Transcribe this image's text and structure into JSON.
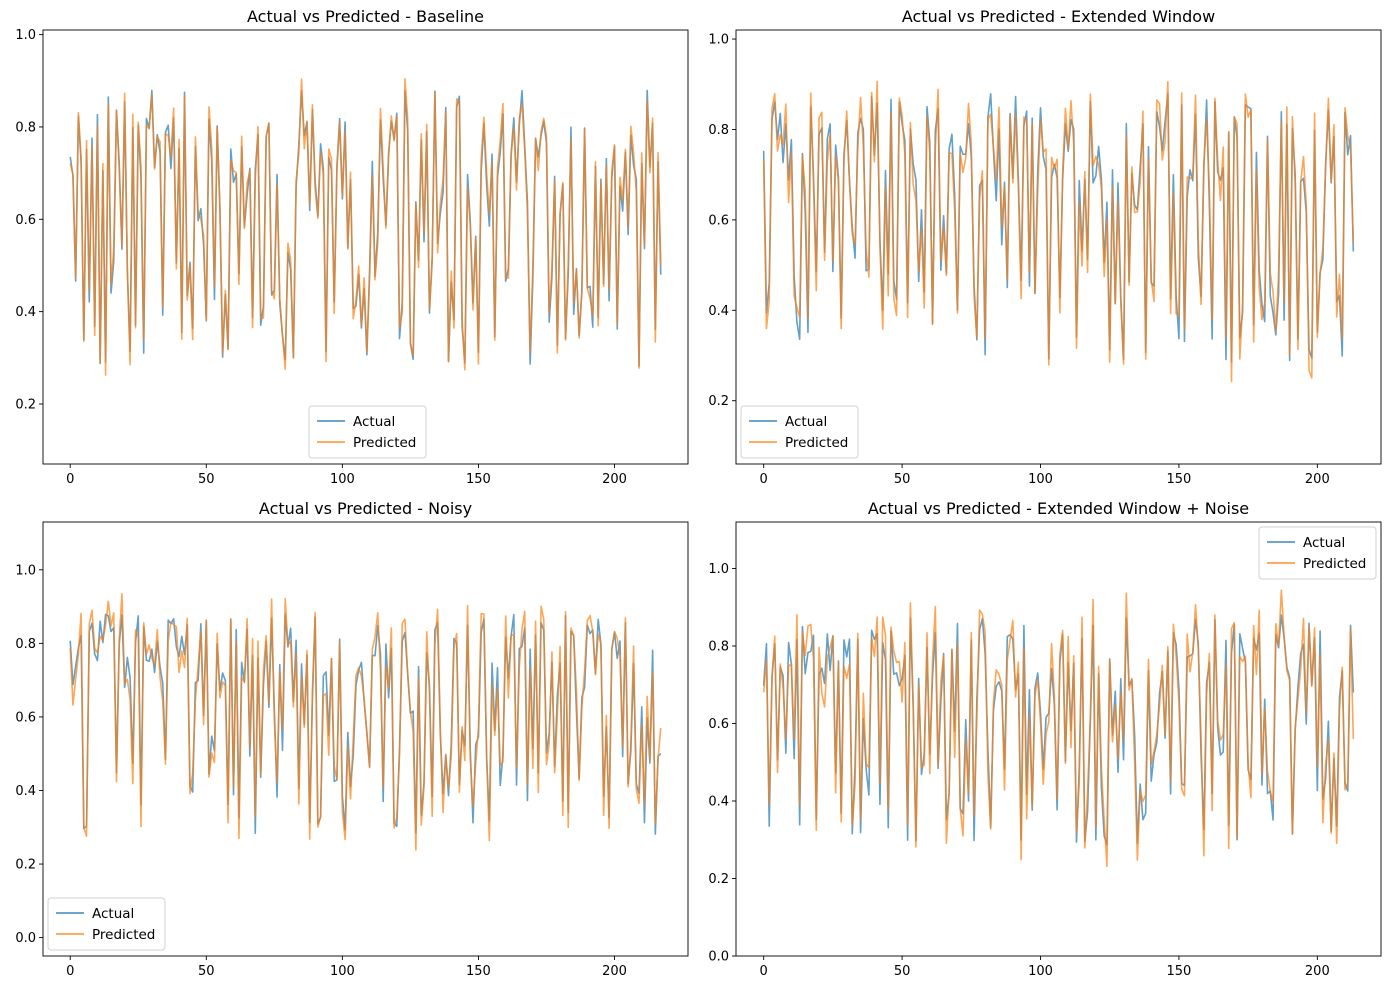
{
  "colors": {
    "actual": "#1f77b4",
    "predicted": "#ff7f0e"
  },
  "chart_data": [
    {
      "type": "line",
      "title": "Actual vs Predicted - Baseline",
      "xlabel": "",
      "ylabel": "",
      "xlim": [
        -10,
        227
      ],
      "ylim": [
        0.07,
        1.01
      ],
      "xticks": [
        0,
        50,
        100,
        150,
        200
      ],
      "yticks": [
        0.2,
        0.4,
        0.6,
        0.8,
        1.0
      ],
      "ytick_labels": [
        "0.2",
        "0.4",
        "0.6",
        "0.8",
        "1.0"
      ],
      "legend_loc": "lower-center",
      "n_points": 218,
      "series": [
        {
          "name": "Actual",
          "seed": 11,
          "noise": 0.0,
          "end": 0.48
        },
        {
          "name": "Predicted",
          "seed": 11,
          "noise": 0.03,
          "end": 0.5
        }
      ]
    },
    {
      "type": "line",
      "title": "Actual vs Predicted - Extended Window",
      "xlabel": "",
      "ylabel": "",
      "xlim": [
        -10,
        223
      ],
      "ylim": [
        0.06,
        1.02
      ],
      "xticks": [
        0,
        50,
        100,
        150,
        200
      ],
      "yticks": [
        0.2,
        0.4,
        0.6,
        0.8,
        1.0
      ],
      "ytick_labels": [
        "0.2",
        "0.4",
        "0.6",
        "0.8",
        "1.0"
      ],
      "legend_loc": "lower-left",
      "n_points": 214,
      "series": [
        {
          "name": "Actual",
          "seed": 23,
          "noise": 0.0,
          "end": 0.53
        },
        {
          "name": "Predicted",
          "seed": 23,
          "noise": 0.05,
          "end": 0.55
        }
      ]
    },
    {
      "type": "line",
      "title": "Actual vs Predicted - Noisy",
      "xlabel": "",
      "ylabel": "",
      "xlim": [
        -10,
        227
      ],
      "ylim": [
        -0.05,
        1.13
      ],
      "xticks": [
        0,
        50,
        100,
        150,
        200
      ],
      "yticks": [
        0.0,
        0.2,
        0.4,
        0.6,
        0.8,
        1.0
      ],
      "ytick_labels": [
        "0.0",
        "0.2",
        "0.4",
        "0.6",
        "0.8",
        "1.0"
      ],
      "legend_loc": "lower-left",
      "n_points": 218,
      "series": [
        {
          "name": "Actual",
          "seed": 37,
          "noise": 0.0,
          "end": 0.5
        },
        {
          "name": "Predicted",
          "seed": 37,
          "noise": 0.06,
          "end": 0.57
        }
      ]
    },
    {
      "type": "line",
      "title": "Actual vs Predicted - Extended Window + Noise",
      "xlabel": "",
      "ylabel": "",
      "xlim": [
        -10,
        223
      ],
      "ylim": [
        0.0,
        1.12
      ],
      "xticks": [
        0,
        50,
        100,
        150,
        200
      ],
      "yticks": [
        0.0,
        0.2,
        0.4,
        0.6,
        0.8,
        1.0
      ],
      "ytick_labels": [
        "0.0",
        "0.2",
        "0.4",
        "0.6",
        "0.8",
        "1.0"
      ],
      "legend_loc": "upper-right",
      "n_points": 214,
      "series": [
        {
          "name": "Actual",
          "seed": 53,
          "noise": 0.0,
          "end": 0.68
        },
        {
          "name": "Predicted",
          "seed": 53,
          "noise": 0.07,
          "end": 0.56
        }
      ]
    }
  ]
}
